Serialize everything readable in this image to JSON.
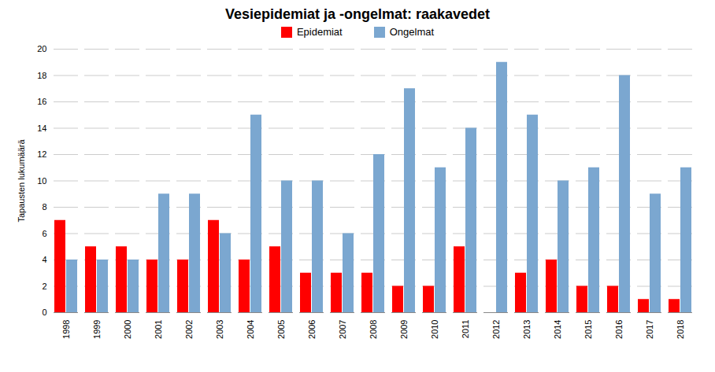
{
  "chart_data": {
    "type": "bar",
    "title": "Vesiepidemiat ja -ongelmat: raakavedet",
    "ylabel": "Tapausten lukumäärä",
    "categories": [
      "1998",
      "1999",
      "2000",
      "2001",
      "2002",
      "2003",
      "2004",
      "2005",
      "2006",
      "2007",
      "2008",
      "2009",
      "2010",
      "2011",
      "2012",
      "2013",
      "2014",
      "2015",
      "2016",
      "2017",
      "2018"
    ],
    "series": [
      {
        "name": "Epidemiat",
        "color": "#FF0000",
        "values": [
          7,
          5,
          5,
          4,
          4,
          7,
          4,
          5,
          3,
          3,
          3,
          2,
          2,
          5,
          0,
          3,
          4,
          2,
          2,
          1,
          1
        ]
      },
      {
        "name": "Ongelmat",
        "color": "#7BA7D0",
        "values": [
          4,
          4,
          4,
          9,
          9,
          6,
          15,
          10,
          10,
          6,
          12,
          17,
          11,
          14,
          19,
          15,
          10,
          11,
          18,
          9,
          11
        ]
      }
    ],
    "ylim": [
      0,
      20
    ],
    "yticks": [
      0,
      2,
      4,
      6,
      8,
      10,
      12,
      14,
      16,
      18,
      20
    ],
    "grid": true,
    "legend": "top"
  }
}
